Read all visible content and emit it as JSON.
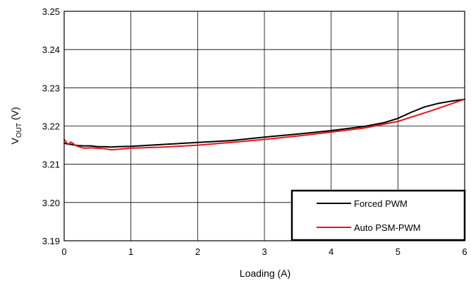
{
  "chart_data": {
    "type": "line",
    "xlabel": "Loading (A)",
    "ylabel": {
      "main": "V",
      "sub": "OUT",
      "unit": " (V)"
    },
    "xlim": [
      0,
      6
    ],
    "ylim": [
      3.19,
      3.25
    ],
    "xticks": [
      0,
      1,
      2,
      3,
      4,
      5,
      6
    ],
    "yticks": [
      3.19,
      3.2,
      3.21,
      3.22,
      3.23,
      3.24,
      3.25
    ],
    "xtick_labels": [
      "0",
      "1",
      "2",
      "3",
      "4",
      "5",
      "6"
    ],
    "ytick_labels": [
      "3.19",
      "3.20",
      "3.21",
      "3.22",
      "3.23",
      "3.24",
      "3.25"
    ],
    "grid": true,
    "legend_position": "bottom-right",
    "series": [
      {
        "name": "Forced PWM",
        "color": "#000000",
        "x": [
          0,
          0.05,
          0.1,
          0.2,
          0.3,
          0.4,
          0.5,
          0.6,
          0.7,
          0.8,
          1.0,
          1.5,
          2.0,
          2.5,
          3.0,
          3.5,
          4.0,
          4.5,
          4.8,
          5.0,
          5.2,
          5.4,
          5.6,
          5.8,
          6.0
        ],
        "y": [
          3.2155,
          3.2153,
          3.2152,
          3.2149,
          3.2148,
          3.2148,
          3.2146,
          3.2146,
          3.2145,
          3.2146,
          3.2147,
          3.2152,
          3.2157,
          3.2162,
          3.2171,
          3.2179,
          3.2188,
          3.2199,
          3.2209,
          3.222,
          3.2236,
          3.225,
          3.2259,
          3.2265,
          3.227
        ]
      },
      {
        "name": "Auto PSM-PWM",
        "color": "#e8141c",
        "x": [
          0,
          0.03,
          0.06,
          0.1,
          0.13,
          0.16,
          0.2,
          0.3,
          0.4,
          0.5,
          0.6,
          0.7,
          0.8,
          1.0,
          1.5,
          2.0,
          2.5,
          3.0,
          3.5,
          4.0,
          4.5,
          5.0,
          5.5,
          6.0
        ],
        "y": [
          3.2165,
          3.2158,
          3.2152,
          3.2158,
          3.2155,
          3.215,
          3.2147,
          3.2142,
          3.2143,
          3.2142,
          3.2141,
          3.2138,
          3.2139,
          3.2142,
          3.2145,
          3.215,
          3.2157,
          3.2165,
          3.2174,
          3.2184,
          3.2195,
          3.2212,
          3.224,
          3.227
        ]
      }
    ]
  }
}
